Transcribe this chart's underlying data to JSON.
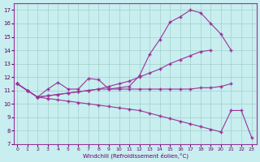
{
  "xlabel": "Windchill (Refroidissement éolien,°C)",
  "bg_color": "#c8eef0",
  "grid_color": "#a0d0c8",
  "line_color": "#993399",
  "line1_y": [
    11.5,
    11.0,
    10.5,
    11.1,
    11.6,
    11.1,
    11.1,
    11.9,
    11.8,
    11.1,
    11.2,
    11.3,
    12.1,
    13.7,
    14.8,
    16.1,
    16.5,
    17.0,
    16.8,
    16.0,
    15.2,
    14.0,
    null,
    null
  ],
  "line2_y": [
    11.5,
    11.0,
    10.5,
    10.6,
    10.7,
    10.8,
    10.9,
    11.0,
    11.1,
    11.3,
    11.5,
    11.7,
    12.0,
    12.3,
    12.6,
    13.0,
    13.3,
    13.6,
    13.9,
    14.0,
    null,
    null,
    null,
    null
  ],
  "line3_y": [
    11.5,
    11.0,
    10.5,
    10.6,
    10.7,
    10.8,
    10.9,
    11.0,
    11.1,
    11.1,
    11.1,
    11.1,
    11.1,
    11.1,
    11.1,
    11.1,
    11.1,
    11.1,
    11.2,
    11.2,
    11.3,
    11.5,
    null,
    null
  ],
  "line4_y": [
    11.5,
    11.0,
    10.5,
    10.4,
    10.3,
    10.2,
    10.1,
    10.0,
    9.9,
    9.8,
    9.7,
    9.6,
    9.5,
    9.3,
    9.1,
    8.9,
    8.7,
    8.5,
    8.3,
    8.1,
    7.9,
    9.5,
    9.5,
    7.5
  ],
  "x": [
    0,
    1,
    2,
    3,
    4,
    5,
    6,
    7,
    8,
    9,
    10,
    11,
    12,
    13,
    14,
    15,
    16,
    17,
    18,
    19,
    20,
    21,
    22,
    23
  ],
  "xlim": [
    -0.3,
    23.5
  ],
  "ylim": [
    7,
    17.5
  ],
  "yticks": [
    7,
    8,
    9,
    10,
    11,
    12,
    13,
    14,
    15,
    16,
    17
  ],
  "xticks": [
    0,
    1,
    2,
    3,
    4,
    5,
    6,
    7,
    8,
    9,
    10,
    11,
    12,
    13,
    14,
    15,
    16,
    17,
    18,
    19,
    20,
    21,
    22,
    23
  ]
}
